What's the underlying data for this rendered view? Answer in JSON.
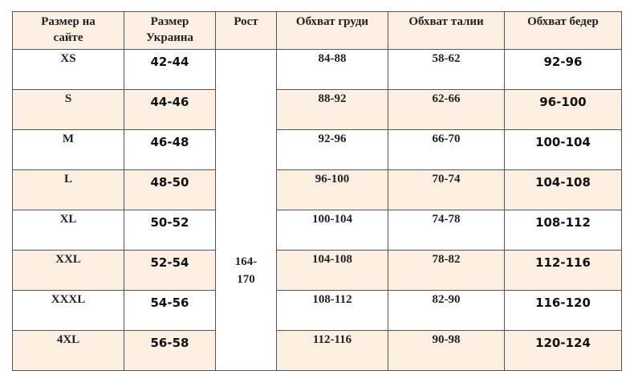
{
  "headers": [
    "Размер на сайте",
    "Размер Украина",
    "Рост",
    "Обхват груди",
    "Обхват талии",
    "Обхват бедер"
  ],
  "height_value": "164-170",
  "rows": [
    {
      "site": "XS",
      "ua": "42-44",
      "chest": "84-88",
      "waist": "58-62",
      "hips": "92-96"
    },
    {
      "site": "S",
      "ua": "44-46",
      "chest": "88-92",
      "waist": "62-66",
      "hips": "96-100"
    },
    {
      "site": "M",
      "ua": "46-48",
      "chest": "92-96",
      "waist": "66-70",
      "hips": "100-104"
    },
    {
      "site": "L",
      "ua": "48-50",
      "chest": "96-100",
      "waist": "70-74",
      "hips": "104-108"
    },
    {
      "site": "XL",
      "ua": "50-52",
      "chest": "100-104",
      "waist": "74-78",
      "hips": "108-112"
    },
    {
      "site": "XXL",
      "ua": "52-54",
      "chest": "104-108",
      "waist": "78-82",
      "hips": "112-116"
    },
    {
      "site": "XXXL",
      "ua": "54-56",
      "chest": "108-112",
      "waist": "82-90",
      "hips": "116-120"
    },
    {
      "site": "4XL",
      "ua": "56-58",
      "chest": "112-116",
      "waist": "90-98",
      "hips": "120-124"
    }
  ],
  "colors": {
    "header_bg": "#fdf0e3",
    "alt_row_bg": "#fdf0e3",
    "border": "#555555"
  }
}
